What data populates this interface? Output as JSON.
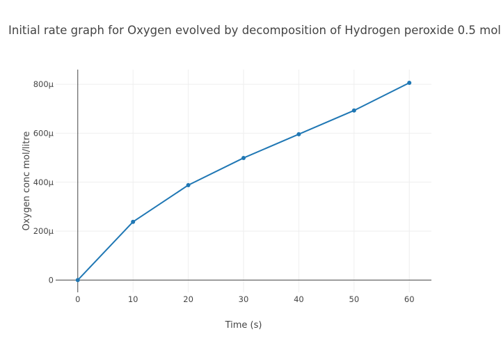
{
  "chart_data": {
    "type": "line",
    "title": "Initial rate graph for Oxygen evolved by decomposition of Hydrogen peroxide 0.5 mol",
    "xlabel": "Time (s)",
    "ylabel": "Oxygen conc mol/litre",
    "x": [
      0,
      10,
      20,
      30,
      40,
      50,
      60
    ],
    "series": [
      {
        "values": [
          0,
          0.000238,
          0.000388,
          0.000499,
          0.000596,
          0.000693,
          0.000806
        ]
      }
    ],
    "xlim": [
      -4,
      64
    ],
    "ylim": [
      -5e-05,
      0.00086
    ],
    "xticks": [
      0,
      10,
      20,
      30,
      40,
      50,
      60
    ],
    "xtick_labels": [
      "0",
      "10",
      "20",
      "30",
      "40",
      "50",
      "60"
    ],
    "yticks": [
      0,
      0.0002,
      0.0004,
      0.0006,
      0.0008
    ],
    "ytick_labels": [
      "0",
      "200µ",
      "400µ",
      "600µ",
      "800µ"
    ],
    "grid": true,
    "legend": "none",
    "colors": {
      "line": "#1f77b4",
      "grid": "#eeeeee",
      "axis": "#444444",
      "text": "#444444"
    }
  }
}
